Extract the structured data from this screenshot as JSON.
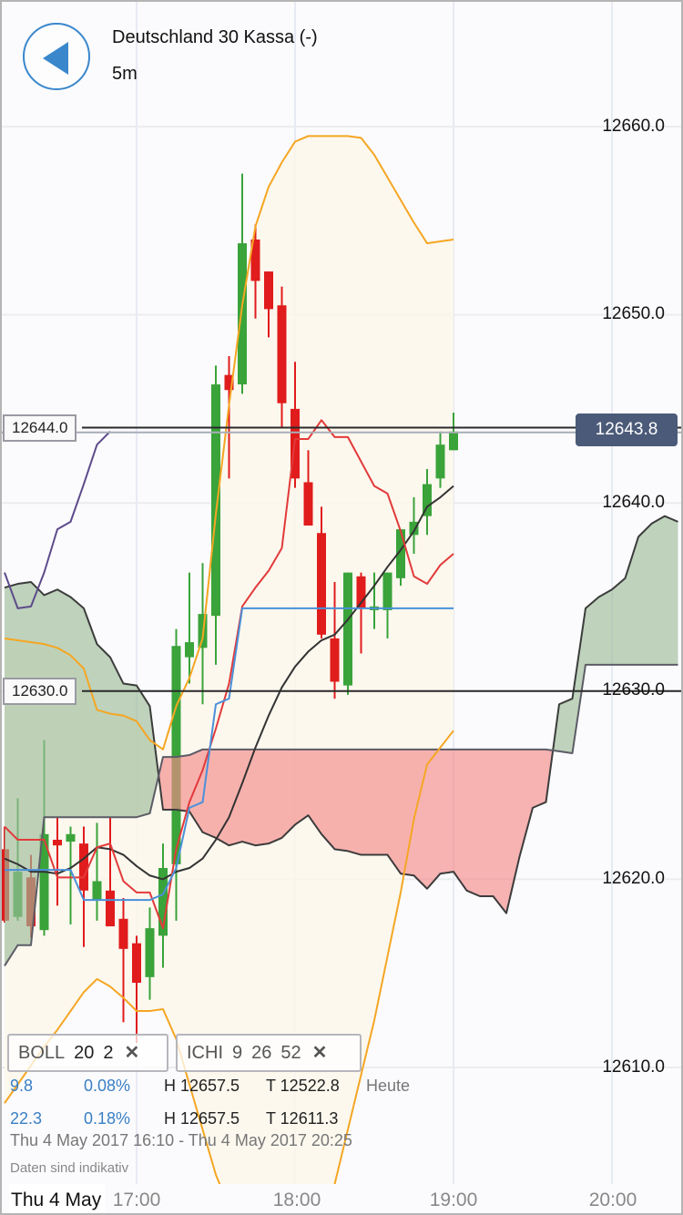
{
  "header": {
    "title": "Deutschland 30 Kassa (-)",
    "interval": "5m",
    "back_icon": "back-arrow-icon"
  },
  "price_axis": {
    "labels": [
      "12660.0",
      "12650.0",
      "12640.0",
      "12630.0",
      "12620.0",
      "12610.0"
    ]
  },
  "horizontal_lines": [
    {
      "label": "12644.0",
      "value": 12644.0
    },
    {
      "label": "12630.0",
      "value": 12630.0
    }
  ],
  "current_price": {
    "label": "12643.8",
    "value": 12643.8,
    "color": "#4b5a78"
  },
  "indicators": [
    {
      "name": "BOLL",
      "params": [
        "20",
        "2"
      ],
      "close_icon": "close-x-icon"
    },
    {
      "name": "ICHI",
      "params": [
        "9",
        "26",
        "52"
      ],
      "close_icon": "close-x-icon"
    }
  ],
  "stats": [
    {
      "change": "9.8",
      "percent": "0.08%",
      "high": "H 12657.5",
      "low": "T 12522.8",
      "period": "Heute"
    },
    {
      "change": "22.3",
      "percent": "0.18%",
      "high": "H 12657.5",
      "low": "T 12611.3",
      "period": ""
    }
  ],
  "range_text": "Thu 4 May 2017 16:10 - Thu 4 May 2017 20:25",
  "disclaimer": "Daten sind indikativ",
  "time_axis": {
    "date_label": "Thu 4 May",
    "labels": [
      "17:00",
      "18:00",
      "19:00",
      "20:00"
    ]
  },
  "colors": {
    "up": "#3aa33a",
    "down": "#e01c1c",
    "boll": "#f5a623",
    "boll_mid": "#333333",
    "tenkan": "#e23a3a",
    "kijun": "#4a90d9",
    "chikou": "#5e4a8a",
    "cloud_up": "#9dbb99",
    "cloud_down": "#f58a8a"
  },
  "chart_data": {
    "type": "candlestick",
    "ylim": [
      12602,
      12666
    ],
    "grid": true,
    "x": [
      "16:10",
      "16:15",
      "16:20",
      "16:25",
      "16:30",
      "16:35",
      "16:40",
      "16:45",
      "16:50",
      "16:55",
      "17:00",
      "17:05",
      "17:10",
      "17:15",
      "17:20",
      "17:25",
      "17:30",
      "17:35",
      "17:40",
      "17:45",
      "17:50",
      "17:55",
      "18:00",
      "18:05",
      "18:10",
      "18:15",
      "18:20",
      "18:25",
      "18:30",
      "18:35",
      "18:40",
      "18:45",
      "18:50",
      "18:55",
      "19:00",
      "19:05",
      "19:10",
      "19:15",
      "19:20",
      "19:25",
      "19:30",
      "19:35",
      "19:40",
      "19:45",
      "19:50",
      "19:55",
      "20:00",
      "20:05",
      "20:10",
      "20:15",
      "20:20",
      "20:25"
    ],
    "ohlc": [
      [
        12621.6,
        12622.8,
        12617.7,
        12617.8
      ],
      [
        12618.0,
        12624.3,
        12617.8,
        12620.4
      ],
      [
        12620.1,
        12621.3,
        12616.9,
        12617.5
      ],
      [
        12617.3,
        12627.4,
        12617.0,
        12622.4
      ],
      [
        12622.1,
        12623.3,
        12618.6,
        12621.8
      ],
      [
        12622.0,
        12622.8,
        12617.6,
        12622.4
      ],
      [
        12621.9,
        12622.8,
        12616.4,
        12619.4
      ],
      [
        12618.9,
        12623.0,
        12617.8,
        12619.9
      ],
      [
        12619.4,
        12623.3,
        12617.5,
        12617.5
      ],
      [
        12617.9,
        12619.0,
        12612.4,
        12616.3
      ],
      [
        12616.6,
        12617.0,
        12611.3,
        12614.5
      ],
      [
        12614.8,
        12618.5,
        12613.6,
        12617.4
      ],
      [
        12617.0,
        12621.9,
        12615.3,
        12620.6
      ],
      [
        12620.8,
        12633.3,
        12617.8,
        12632.4
      ],
      [
        12631.8,
        12636.3,
        12630.4,
        12632.6
      ],
      [
        12632.3,
        12636.8,
        12629.3,
        12634.1
      ],
      [
        12634.0,
        12647.3,
        12631.4,
        12646.3
      ],
      [
        12646.8,
        12647.8,
        12641.3,
        12646.0
      ],
      [
        12646.3,
        12657.5,
        12645.8,
        12653.8
      ],
      [
        12654.0,
        12654.8,
        12649.8,
        12651.8
      ],
      [
        12652.3,
        12652.3,
        12648.8,
        12650.3
      ],
      [
        12650.5,
        12651.5,
        12644.0,
        12645.3
      ],
      [
        12645.0,
        12647.5,
        12640.8,
        12641.3
      ],
      [
        12641.1,
        12642.8,
        12638.8,
        12638.8
      ],
      [
        12638.4,
        12639.8,
        12632.8,
        12633.0
      ],
      [
        12632.8,
        12635.8,
        12629.6,
        12630.5
      ],
      [
        12630.3,
        12636.3,
        12629.8,
        12636.3
      ],
      [
        12636.1,
        12636.3,
        12632.0,
        12634.4
      ],
      [
        12634.3,
        12636.3,
        12633.3,
        12634.5
      ],
      [
        12634.3,
        12636.3,
        12632.8,
        12636.3
      ],
      [
        12636.0,
        12638.6,
        12635.6,
        12638.6
      ],
      [
        12638.3,
        12640.3,
        12637.3,
        12639.0
      ],
      [
        12639.3,
        12641.8,
        12638.3,
        12641.0
      ],
      [
        12641.3,
        12643.8,
        12640.8,
        12643.1
      ],
      [
        12642.8,
        12644.8,
        12642.8,
        12643.8
      ]
    ],
    "boll_upper": [
      12632.8,
      12632.7,
      12632.6,
      12632.5,
      12632.3,
      12631.9,
      12631.2,
      12629.0,
      12628.8,
      12628.7,
      12628.4,
      12627.4,
      12626.9,
      12629.2,
      12630.7,
      12632.8,
      12639.4,
      12645.2,
      12650.5,
      12654.7,
      12656.8,
      12658.1,
      12659.2,
      12659.5,
      12659.5,
      12659.5,
      12659.5,
      12659.4,
      12658.5,
      12657.3,
      12656.1,
      12654.9,
      12653.8,
      12653.9,
      12654.0
    ],
    "boll_middle": [
      12621.1,
      12620.8,
      12620.4,
      12620.4,
      12620.3,
      12620.6,
      12621.1,
      12621.7,
      12621.6,
      12621.3,
      12620.7,
      12620.2,
      12620.0,
      12620.4,
      12620.6,
      12621.1,
      12622.1,
      12623.3,
      12625.1,
      12627.0,
      12628.7,
      12630.2,
      12631.3,
      12632.1,
      12632.7,
      12633.0,
      12633.8,
      12634.7,
      12635.6,
      12636.6,
      12637.5,
      12638.5,
      12639.8,
      12640.3,
      12640.9
    ],
    "boll_lower": [
      12608.1,
      12609.1,
      12610.1,
      12611.1,
      12612.0,
      12613.0,
      12614.0,
      12614.7,
      12614.3,
      12613.7,
      12613.0,
      12613.0,
      12613.1,
      12611.5,
      12609.1,
      12606.7,
      12604.3,
      12601.9,
      12599.0,
      12596.5,
      12595.1,
      12595.1,
      12595.6,
      12598.0,
      12601.9,
      12603.8,
      12606.7,
      12609.6,
      12612.5,
      12615.9,
      12619.3,
      12623.2,
      12626.1,
      12627.0,
      12627.9
    ],
    "tenkan": [
      12622.8,
      12622.1,
      12622.1,
      12622.1,
      12620.1,
      12620.1,
      12620.1,
      12621.7,
      12621.9,
      12619.9,
      12619.3,
      12619.3,
      12617.4,
      12621.6,
      12624.1,
      12625.8,
      12628.0,
      12630.4,
      12634.5,
      12635.5,
      12636.4,
      12637.6,
      12643.4,
      12643.4,
      12644.4,
      12643.5,
      12643.5,
      12642.2,
      12640.9,
      12640.5,
      12638.5,
      12636.1,
      12635.7,
      12636.7,
      12637.3
    ],
    "kijun": [
      12620.5,
      12620.5,
      12620.5,
      12620.5,
      12620.5,
      12620.5,
      12618.9,
      12618.9,
      12618.9,
      12618.9,
      12618.9,
      12618.9,
      12619.2,
      12620.6,
      12623.8,
      12624.1,
      12629.3,
      12629.6,
      12634.4,
      12634.4,
      12634.4,
      12634.4,
      12634.4,
      12634.4,
      12634.4,
      12634.4,
      12634.4,
      12634.4,
      12634.4,
      12634.4,
      12634.4,
      12634.4,
      12634.4,
      12634.4,
      12634.4
    ],
    "chikou": [
      12636.3,
      12634.4,
      12634.5,
      12636.3,
      12638.6,
      12639.0,
      12641.0,
      12643.1,
      12643.8
    ],
    "senkou_a": [
      12635.5,
      12635.7,
      12635.8,
      12635.1,
      12635.4,
      12635.0,
      12634.4,
      12632.5,
      12631.8,
      12630.4,
      12630.3,
      12629.2,
      12623.7,
      12623.7,
      12623.6,
      12622.5,
      12622.2,
      12621.8,
      12622.0,
      12621.8,
      12621.9,
      12622.2,
      12622.9,
      12623.4,
      12622.4,
      12621.6,
      12621.5,
      12621.3,
      12621.3,
      12621.3,
      12620.3,
      12620.2,
      12619.5,
      12620.3,
      12620.4,
      12619.4,
      12619.1,
      12619.1,
      12618.2,
      12621.2,
      12623.8,
      12624.1,
      12629.3,
      12629.6,
      12634.4,
      12635.0,
      12635.4,
      12636.0,
      12638.2,
      12638.9,
      12639.3,
      12639.0
    ],
    "senkou_b": [
      12615.4,
      12616.5,
      12616.5,
      12623.3,
      12623.3,
      12623.3,
      12623.3,
      12623.3,
      12623.3,
      12623.3,
      12623.3,
      12623.5,
      12626.5,
      12626.5,
      12626.6,
      12626.9,
      12626.9,
      12626.9,
      12626.9,
      12626.9,
      12626.9,
      12626.9,
      12626.9,
      12626.9,
      12626.9,
      12626.9,
      12626.9,
      12626.9,
      12626.9,
      12626.9,
      12626.9,
      12626.9,
      12626.9,
      12626.9,
      12626.9,
      12626.9,
      12626.9,
      12626.9,
      12626.9,
      12626.9,
      12626.9,
      12626.9,
      12626.8,
      12626.7,
      12631.4,
      12631.4,
      12631.4,
      12631.4,
      12631.4,
      12631.4,
      12631.4,
      12631.4
    ]
  }
}
